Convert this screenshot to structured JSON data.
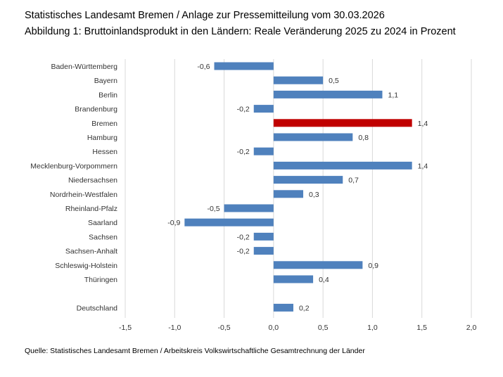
{
  "header": {
    "line1": "Statistisches Landesamt Bremen / Anlage zur Pressemitteilung vom 30.03.2026",
    "line2": "Abbildung 1: Bruttoinlandsprodukt in den Ländern: Reale Veränderung 2025 zu 2024 in Prozent"
  },
  "footer": {
    "source": "Quelle: Statistisches Landesamt Bremen / Arbeitskreis Volkswirtschaftliche Gesamtrechnung der Länder"
  },
  "chart_data": {
    "type": "bar",
    "orientation": "horizontal",
    "categories": [
      "Baden-Württemberg",
      "Bayern",
      "Berlin",
      "Brandenburg",
      "Bremen",
      "Hamburg",
      "Hessen",
      "Mecklenburg-Vorpommern",
      "Niedersachsen",
      "Nordrhein-Westfalen",
      "Rheinland-Pfalz",
      "Saarland",
      "Sachsen",
      "Sachsen-Anhalt",
      "Schleswig-Holstein",
      "Thüringen",
      "",
      "Deutschland"
    ],
    "values": [
      -0.6,
      0.5,
      1.1,
      -0.2,
      1.4,
      0.8,
      -0.2,
      1.4,
      0.7,
      0.3,
      -0.5,
      -0.9,
      -0.2,
      -0.2,
      0.9,
      0.4,
      null,
      0.2
    ],
    "data_labels": [
      "-0,6",
      "0,5",
      "1,1",
      "-0,2",
      "1,4",
      "0,8",
      "-0,2",
      "1,4",
      "0,7",
      "0,3",
      "-0,5",
      "-0,9",
      "-0,2",
      "-0,2",
      "0,9",
      "0,4",
      "",
      "0,2"
    ],
    "highlight": "Bremen",
    "colors": {
      "default": "#4f81bd",
      "highlight": "#c00000",
      "grid": "#d9d9d9"
    },
    "xlim": [
      -1.5,
      2.0
    ],
    "xticks": [
      -1.5,
      -1.0,
      -0.5,
      0.0,
      0.5,
      1.0,
      1.5,
      2.0
    ],
    "xtick_labels": [
      "-1,5",
      "-1,0",
      "-0,5",
      "0,0",
      "0,5",
      "1,0",
      "1,5",
      "2,0"
    ],
    "grid": "vertical",
    "legend": "none"
  }
}
